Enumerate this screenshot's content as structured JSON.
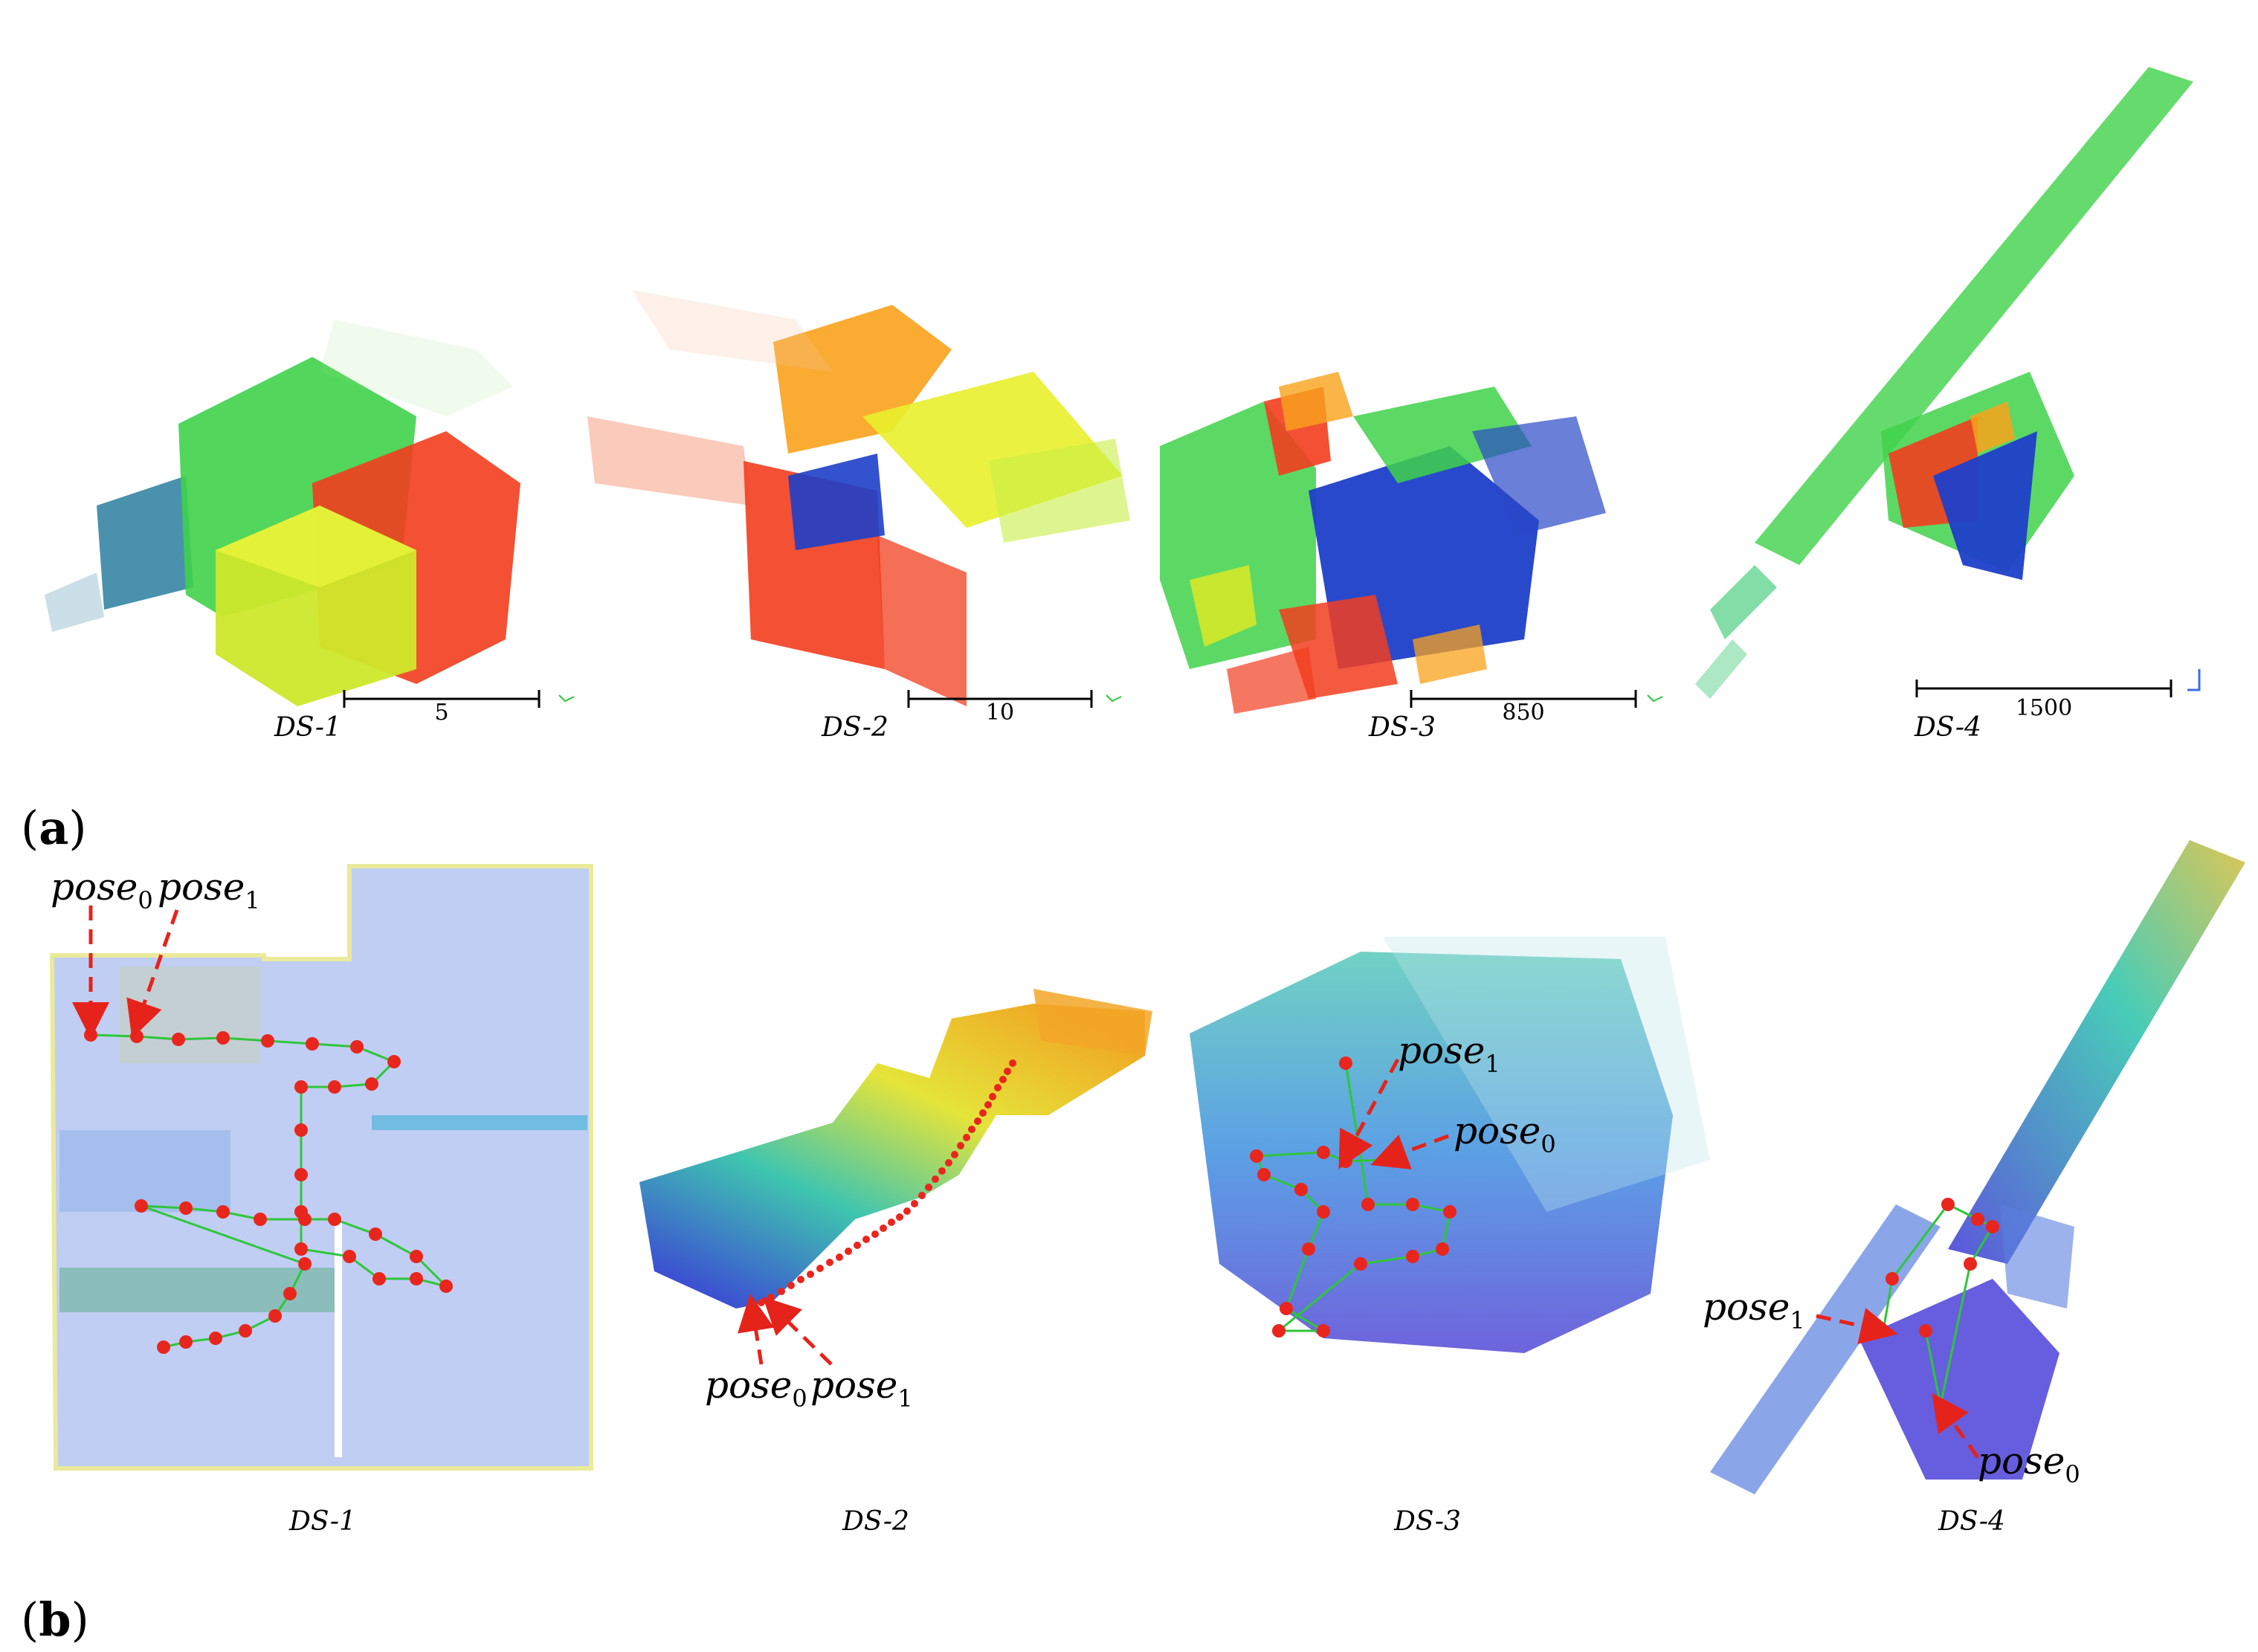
{
  "panels": {
    "a": {
      "label_open": "(",
      "label_letter": "a",
      "label_close": ")"
    },
    "b": {
      "label_open": "(",
      "label_letter": "b",
      "label_close": ")"
    }
  },
  "datasets": [
    {
      "id": "ds1",
      "caption": "DS-1",
      "scale_value": "5"
    },
    {
      "id": "ds2",
      "caption": "DS-2",
      "scale_value": "10"
    },
    {
      "id": "ds3",
      "caption": "DS-3",
      "scale_value": "850"
    },
    {
      "id": "ds4",
      "caption": "DS-4",
      "scale_value": "1500"
    }
  ],
  "pose_labels": {
    "base": "pose",
    "sub0": "0",
    "sub1": "1"
  },
  "colors": {
    "arrow": "#e5231b",
    "trajectory": "#2ec63a",
    "node": "#e8261e",
    "pc_red": "#f23d1e",
    "pc_orange": "#f9a21b",
    "pc_yellow": "#d6ef2c",
    "pc_green": "#3fd24a",
    "pc_blue": "#1d3fc9",
    "pc_teal": "#2a7ea0",
    "bev_blue": "#5a7fe0",
    "bev_cyan": "#4fb7d8",
    "bev_yellow": "#d9d94a"
  }
}
